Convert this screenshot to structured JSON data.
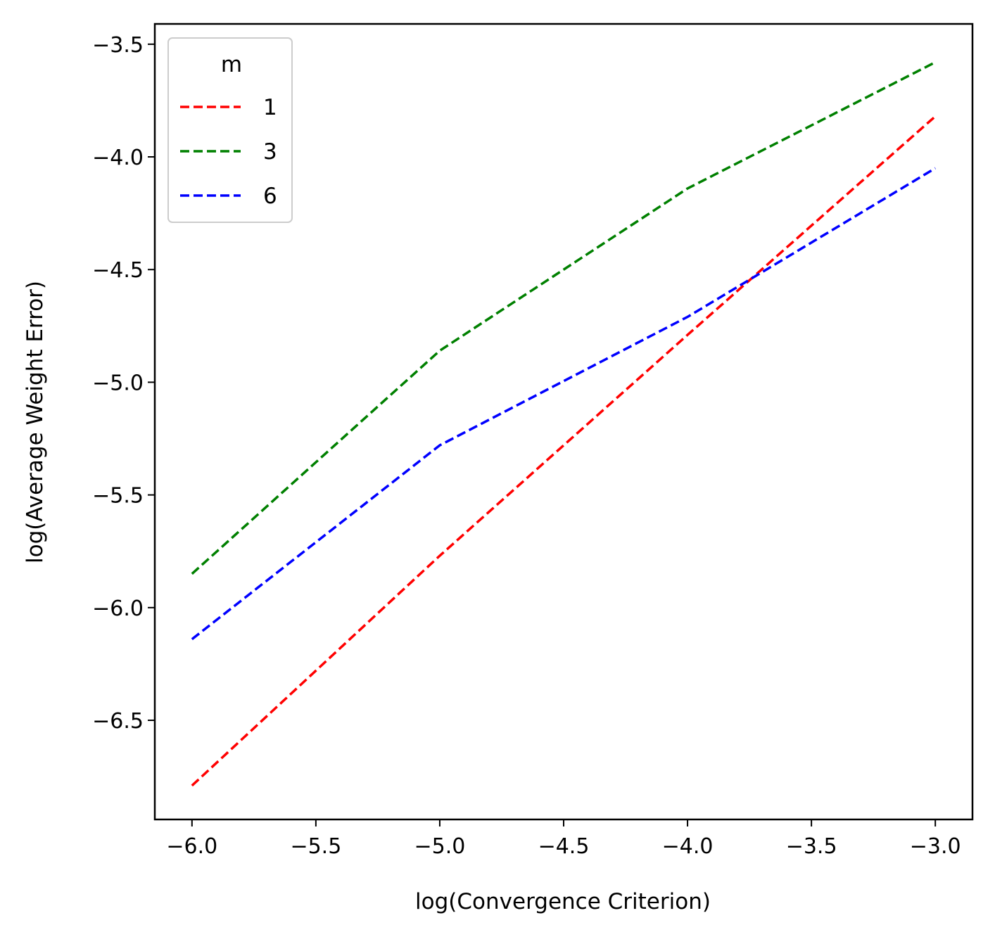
{
  "chart_data": {
    "type": "line",
    "title": "",
    "xlabel": "log(Convergence Criterion)",
    "ylabel": "log(Average Weight Error)",
    "xlim": [
      -6.15,
      -2.85
    ],
    "ylim": [
      -6.94,
      -3.41
    ],
    "x_ticks": [
      -6.0,
      -5.5,
      -5.0,
      -4.5,
      -4.0,
      -3.5,
      -3.0
    ],
    "x_tick_labels": [
      "−6.0",
      "−5.5",
      "−5.0",
      "−4.5",
      "−4.0",
      "−3.5",
      "−3.0"
    ],
    "y_ticks": [
      -3.5,
      -4.0,
      -4.5,
      -5.0,
      -5.5,
      -6.0,
      -6.5
    ],
    "y_tick_labels": [
      "−3.5",
      "−4.0",
      "−4.5",
      "−5.0",
      "−5.5",
      "−6.0",
      "−6.5"
    ],
    "grid": false,
    "legend": {
      "title": "m",
      "position": "top-left"
    },
    "x": [
      -6.0,
      -5.0,
      -4.0,
      -3.0
    ],
    "series": [
      {
        "name": "1",
        "color": "#ff0000",
        "linestyle": "dashed",
        "values": [
          -6.79,
          -5.77,
          -4.79,
          -3.82
        ]
      },
      {
        "name": "3",
        "color": "#008000",
        "linestyle": "dashed",
        "values": [
          -5.85,
          -4.86,
          -4.14,
          -3.58
        ]
      },
      {
        "name": "6",
        "color": "#0000ff",
        "linestyle": "dashed",
        "values": [
          -6.14,
          -5.28,
          -4.71,
          -4.05
        ]
      }
    ]
  }
}
